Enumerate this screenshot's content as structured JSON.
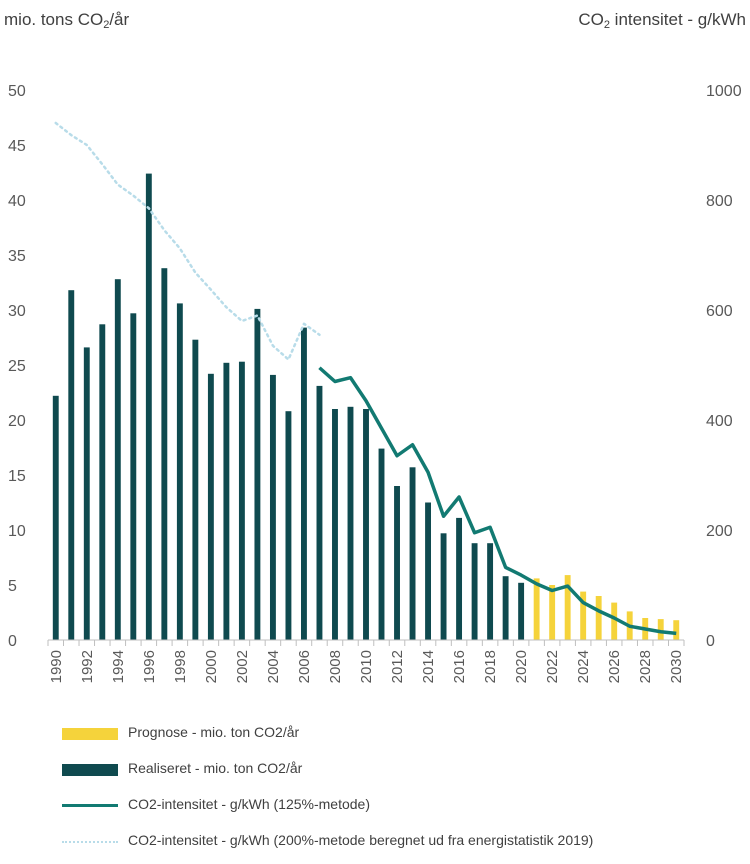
{
  "chart_data": {
    "type": "bar+line",
    "ylabel_left": "mio. tons CO",
    "ylabel_left_sub": "2",
    "ylabel_left_suffix": "/år",
    "ylabel_right_prefix": "CO",
    "ylabel_right_sub": "2",
    "ylabel_right": " intensitet - g/kWh",
    "ylim_left": [
      0,
      50
    ],
    "ylim_right": [
      0,
      1000
    ],
    "yticks_left": [
      "0",
      "5",
      "10",
      "15",
      "20",
      "25",
      "30",
      "35",
      "40",
      "45",
      "50"
    ],
    "yticks_right": [
      "0",
      "200",
      "400",
      "600",
      "800",
      "1000"
    ],
    "x": [
      1990,
      1991,
      1992,
      1993,
      1994,
      1995,
      1996,
      1997,
      1998,
      1999,
      2000,
      2001,
      2002,
      2003,
      2004,
      2005,
      2006,
      2007,
      2008,
      2009,
      2010,
      2011,
      2012,
      2013,
      2014,
      2015,
      2016,
      2017,
      2018,
      2019,
      2020,
      2021,
      2022,
      2023,
      2024,
      2025,
      2026,
      2027,
      2028,
      2029,
      2030
    ],
    "xtick_labels": [
      "1990",
      "1992",
      "1994",
      "1996",
      "1998",
      "2000",
      "2002",
      "2004",
      "2006",
      "2008",
      "2010",
      "2012",
      "2014",
      "2016",
      "2018",
      "2020",
      "2022",
      "2024",
      "2026",
      "2028",
      "2030"
    ],
    "series": [
      {
        "name": "Realiseret - mio. ton CO2/år",
        "type": "bar",
        "axis": "left",
        "color": "#0f4a4f",
        "x": [
          1990,
          1991,
          1992,
          1993,
          1994,
          1995,
          1996,
          1997,
          1998,
          1999,
          2000,
          2001,
          2002,
          2003,
          2004,
          2005,
          2006,
          2007,
          2008,
          2009,
          2010,
          2011,
          2012,
          2013,
          2014,
          2015,
          2016,
          2017,
          2018,
          2019,
          2020
        ],
        "values": [
          22.2,
          31.8,
          26.6,
          28.7,
          32.8,
          29.7,
          42.4,
          33.8,
          30.6,
          27.3,
          24.2,
          25.2,
          25.3,
          30.1,
          24.1,
          20.8,
          28.4,
          23.1,
          21.0,
          21.2,
          21.0,
          17.4,
          14.0,
          15.7,
          12.5,
          9.7,
          11.1,
          8.8,
          8.8,
          5.8,
          5.2
        ]
      },
      {
        "name": "Prognose - mio. ton CO2/år",
        "type": "bar",
        "axis": "left",
        "color": "#f5d33b",
        "x": [
          2021,
          2022,
          2023,
          2024,
          2025,
          2026,
          2027,
          2028,
          2029,
          2030
        ],
        "values": [
          5.6,
          5.0,
          5.9,
          4.4,
          4.0,
          3.4,
          2.6,
          2.0,
          1.9,
          1.8
        ]
      },
      {
        "name": "CO2-intensitet - g/kWh (125%-metode)",
        "type": "line",
        "axis": "right",
        "color": "#127a72",
        "x": [
          2007,
          2008,
          2009,
          2010,
          2011,
          2012,
          2013,
          2014,
          2015,
          2016,
          2017,
          2018,
          2019,
          2020,
          2021,
          2022,
          2023,
          2024,
          2025,
          2026,
          2027,
          2028,
          2029,
          2030
        ],
        "values": [
          495,
          470,
          477,
          435,
          385,
          335,
          355,
          305,
          225,
          260,
          195,
          205,
          132,
          118,
          102,
          90,
          98,
          68,
          53,
          40,
          25,
          20,
          15,
          12
        ]
      },
      {
        "name": "CO2-intensitet - g/kWh (200%-metode beregnet ud fra energistatistik 2019)",
        "type": "line",
        "style": "dotted",
        "axis": "right",
        "color": "#b8dce9",
        "x": [
          1990,
          1991,
          1992,
          1993,
          1994,
          1995,
          1996,
          1997,
          1998,
          1999,
          2000,
          2001,
          2002,
          2003,
          2004,
          2005,
          2006,
          2007
        ],
        "values": [
          940,
          918,
          900,
          865,
          828,
          808,
          785,
          745,
          712,
          668,
          637,
          605,
          580,
          590,
          535,
          510,
          575,
          555
        ]
      }
    ],
    "legend": {
      "placement": "bottom",
      "entries": [
        {
          "label": "Prognose - mio. ton CO2/år",
          "swatch": "bar",
          "color": "#f5d33b"
        },
        {
          "label": "Realiseret - mio. ton CO2/år",
          "swatch": "bar",
          "color": "#0f4a4f"
        },
        {
          "label": "CO2-intensitet - g/kWh (125%-metode)",
          "swatch": "line",
          "color": "#127a72"
        },
        {
          "label": "CO2-intensitet - g/kWh (200%-metode beregnet ud fra energistatistik 2019)",
          "swatch": "dotted",
          "color": "#b8dce9"
        }
      ]
    },
    "grid": false
  }
}
